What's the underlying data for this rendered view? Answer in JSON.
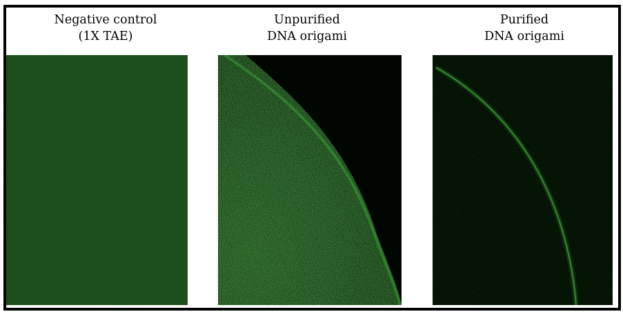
{
  "panels": [
    {
      "title_line1": "Negative control",
      "title_line2": "(1X TAE)",
      "image": "uniform-dim-green-fluorescence"
    },
    {
      "title_line1": "Unpurified",
      "title_line2": "DNA origami",
      "image": "bright-green-speckle-with-curved-edge"
    },
    {
      "title_line1": "Purified",
      "title_line2": "DNA origami",
      "image": "dark-field-with-thin-green-arc"
    }
  ],
  "colors": {
    "fluorescence": "#3fae3c",
    "background_dark": "#020802",
    "negative_control_tint": "#0f2a0d",
    "frame": "#000000"
  }
}
